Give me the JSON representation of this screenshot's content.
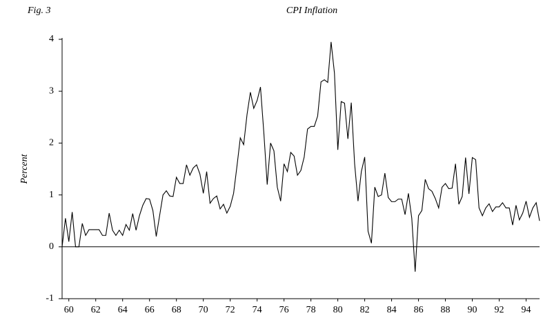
{
  "chart_data": {
    "type": "line",
    "figure_label": "Fig. 3",
    "title": "CPI Inflation",
    "y_label": "Percent",
    "x": [
      1960,
      1960.25,
      1960.5,
      1960.75,
      1961,
      1961.25,
      1961.5,
      1961.75,
      1962,
      1962.25,
      1962.5,
      1962.75,
      1963,
      1963.25,
      1963.5,
      1963.75,
      1964,
      1964.25,
      1964.5,
      1964.75,
      1965,
      1965.25,
      1965.5,
      1965.75,
      1966,
      1966.25,
      1966.5,
      1966.75,
      1967,
      1967.25,
      1967.5,
      1967.75,
      1968,
      1968.25,
      1968.5,
      1968.75,
      1969,
      1969.25,
      1969.5,
      1969.75,
      1970,
      1970.25,
      1970.5,
      1970.75,
      1971,
      1971.25,
      1971.5,
      1971.75,
      1972,
      1972.25,
      1972.5,
      1972.75,
      1973,
      1973.25,
      1973.5,
      1973.75,
      1974,
      1974.25,
      1974.5,
      1974.75,
      1975,
      1975.25,
      1975.5,
      1975.75,
      1976,
      1976.25,
      1976.5,
      1976.75,
      1977,
      1977.25,
      1977.5,
      1977.75,
      1978,
      1978.25,
      1978.5,
      1978.75,
      1979,
      1979.25,
      1979.5,
      1979.75,
      1980,
      1980.25,
      1980.5,
      1980.75,
      1981,
      1981.25,
      1981.5,
      1981.75,
      1982,
      1982.25,
      1982.5,
      1982.75,
      1983,
      1983.25,
      1983.5,
      1983.75,
      1984,
      1984.25,
      1984.5,
      1984.75,
      1985,
      1985.25,
      1985.5,
      1985.75,
      1986,
      1986.25,
      1986.5,
      1986.75,
      1987,
      1987.25,
      1987.5,
      1987.75,
      1988,
      1988.25,
      1988.5,
      1988.75,
      1989,
      1989.25,
      1989.5,
      1989.75,
      1990,
      1990.25,
      1990.5,
      1990.75,
      1991,
      1991.25,
      1991.5,
      1991.75,
      1992,
      1992.25,
      1992.5,
      1992.75,
      1993,
      1993.25,
      1993.5,
      1993.75,
      1994,
      1994.25,
      1994.5,
      1994.75,
      1995,
      1995.25,
      1995.5
    ],
    "series": [
      {
        "color": "#000000",
        "values": [
          0,
          0.55,
          0.1,
          0.67,
          0,
          0,
          0.45,
          0.22,
          0.33,
          0.33,
          0.33,
          0.33,
          0.22,
          0.22,
          0.65,
          0.32,
          0.22,
          0.32,
          0.22,
          0.43,
          0.32,
          0.64,
          0.32,
          0.6,
          0.8,
          0.93,
          0.92,
          0.7,
          0.2,
          0.6,
          1.0,
          1.08,
          0.98,
          0.97,
          1.34,
          1.22,
          1.22,
          1.58,
          1.38,
          1.52,
          1.58,
          1.4,
          1.03,
          1.45,
          0.84,
          0.93,
          0.98,
          0.73,
          0.82,
          0.65,
          0.78,
          1.03,
          1.55,
          2.1,
          1.97,
          2.55,
          2.98,
          2.67,
          2.82,
          3.08,
          2.2,
          1.2,
          2.0,
          1.85,
          1.15,
          0.88,
          1.6,
          1.45,
          1.82,
          1.75,
          1.38,
          1.47,
          1.73,
          2.27,
          2.32,
          2.32,
          2.52,
          3.18,
          3.22,
          3.17,
          3.95,
          3.35,
          1.87,
          2.8,
          2.77,
          2.08,
          2.78,
          1.6,
          0.88,
          1.45,
          1.73,
          0.3,
          0.07,
          1.15,
          0.97,
          1.0,
          1.42,
          0.95,
          0.87,
          0.87,
          0.92,
          0.92,
          0.62,
          1.03,
          0.55,
          -0.48,
          0.6,
          0.7,
          1.3,
          1.12,
          1.07,
          0.93,
          0.75,
          1.15,
          1.22,
          1.12,
          1.13,
          1.6,
          0.82,
          0.97,
          1.72,
          1.02,
          1.72,
          1.68,
          0.75,
          0.6,
          0.75,
          0.83,
          0.68,
          0.77,
          0.77,
          0.85,
          0.75,
          0.75,
          0.42,
          0.8,
          0.52,
          0.65,
          0.88,
          0.57,
          0.75,
          0.85,
          0.5
        ]
      }
    ],
    "xlim": [
      1960,
      1995.5
    ],
    "xticks": [
      {
        "value": 1960.5,
        "label": "60"
      },
      {
        "value": 1962.5,
        "label": "62"
      },
      {
        "value": 1964.5,
        "label": "64"
      },
      {
        "value": 1966.5,
        "label": "66"
      },
      {
        "value": 1968.5,
        "label": "68"
      },
      {
        "value": 1970.5,
        "label": "70"
      },
      {
        "value": 1972.5,
        "label": "72"
      },
      {
        "value": 1974.5,
        "label": "74"
      },
      {
        "value": 1976.5,
        "label": "76"
      },
      {
        "value": 1978.5,
        "label": "78"
      },
      {
        "value": 1980.5,
        "label": "80"
      },
      {
        "value": 1982.5,
        "label": "82"
      },
      {
        "value": 1984.5,
        "label": "84"
      },
      {
        "value": 1986.5,
        "label": "86"
      },
      {
        "value": 1988.5,
        "label": "88"
      },
      {
        "value": 1990.5,
        "label": "90"
      },
      {
        "value": 1992.5,
        "label": "92"
      },
      {
        "value": 1994.5,
        "label": "94"
      }
    ],
    "ylim": [
      -1,
      4
    ],
    "yticks": [
      -1,
      0,
      1,
      2,
      3,
      4
    ]
  }
}
